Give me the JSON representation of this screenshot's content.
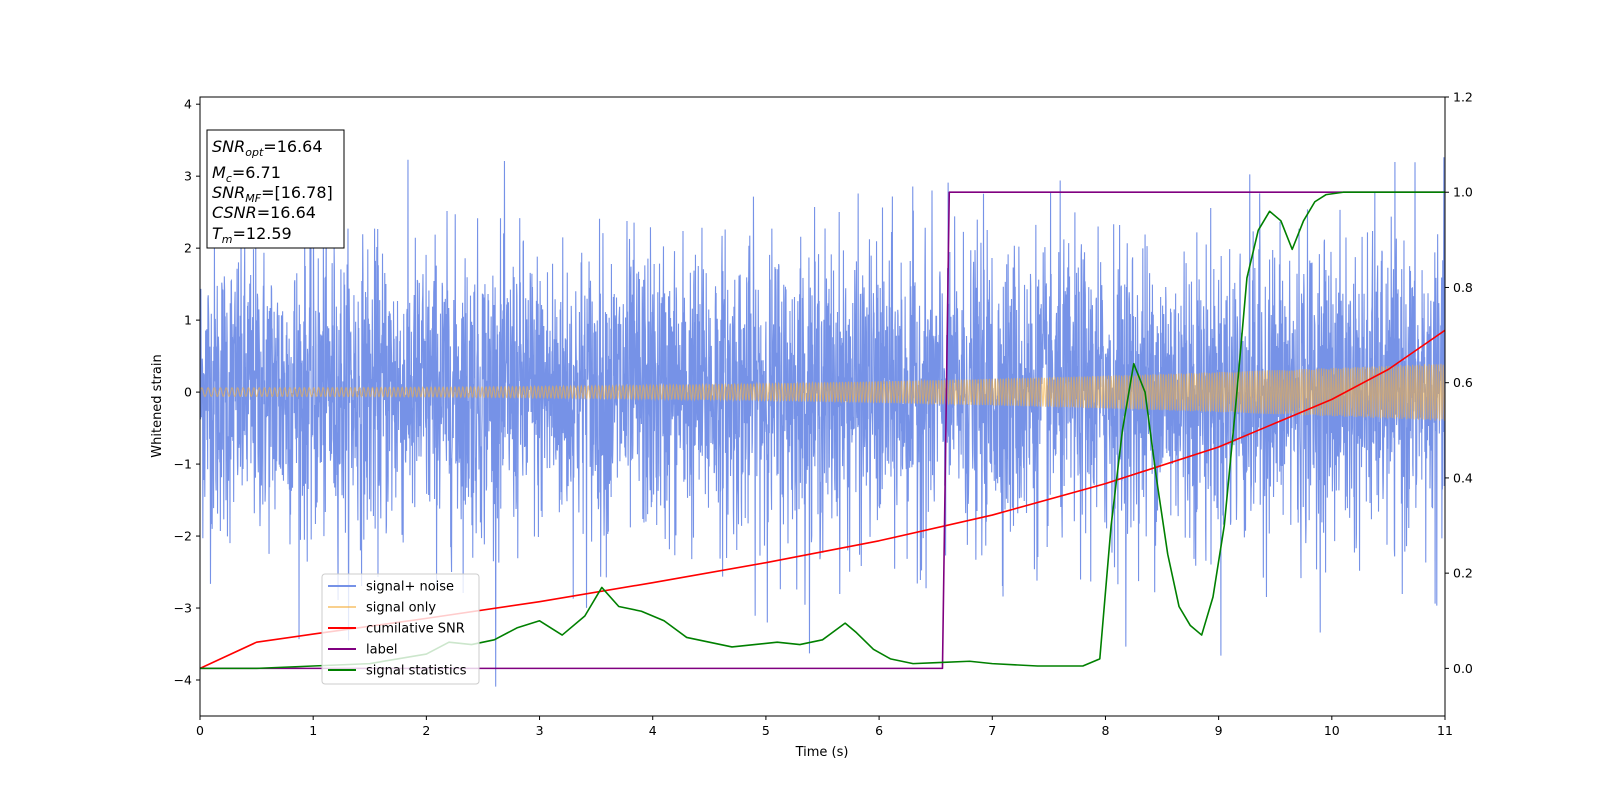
{
  "chart_data": {
    "type": "line",
    "xlabel": "Time (s)",
    "ylabel": "Whitened strain",
    "xlim": [
      0,
      11
    ],
    "ylim": [
      -4.5,
      4.1
    ],
    "y2lim": [
      -0.1,
      1.2
    ],
    "x_ticks": [
      "0",
      "1",
      "2",
      "3",
      "4",
      "5",
      "6",
      "7",
      "8",
      "9",
      "10",
      "11"
    ],
    "y_ticks": [
      "4",
      "3",
      "2",
      "1",
      "0",
      "−1",
      "−2",
      "−3",
      "−4"
    ],
    "y2_ticks": [
      "1.2",
      "1.0",
      "0.8",
      "0.6",
      "0.4",
      "0.2",
      "0.0"
    ],
    "grid": false,
    "legend_position": "lower-left",
    "info_box": {
      "snr_opt": {
        "base": "SNR",
        "sub": "opt",
        "value": "=16.64"
      },
      "mc": {
        "base": "M",
        "sub": "c",
        "value": "=6.71"
      },
      "snr_mf": {
        "base": "SNR",
        "sub": "MF",
        "value": "=[16.78]"
      },
      "csnr": {
        "base": "CSNR",
        "value": "=16.64"
      },
      "tm": {
        "base": "T",
        "sub": "m",
        "value": "=12.59"
      }
    },
    "series": [
      {
        "name": "signal+ noise",
        "axis": "left",
        "color": "#6f8ce6",
        "style": "noise-band",
        "description_values": {
          "noise_sigma": 1.0,
          "peak_max": 3.65,
          "peak_min": -4.15
        }
      },
      {
        "name": "signal only",
        "axis": "left",
        "color": "#f5b041",
        "style": "chirp",
        "description_values": {
          "amplitude_start": 0.06,
          "amplitude_end": 0.4,
          "cycles": 400
        }
      },
      {
        "name": "cumilative SNR",
        "axis": "right",
        "color": "#ff0000",
        "x": [
          0,
          0.5,
          1,
          2,
          3,
          4,
          5,
          6,
          7,
          8,
          9,
          10,
          10.5,
          11
        ],
        "y": [
          0.0,
          0.055,
          0.072,
          0.105,
          0.14,
          0.18,
          0.222,
          0.268,
          0.322,
          0.388,
          0.465,
          0.565,
          0.628,
          0.71
        ]
      },
      {
        "name": "label",
        "axis": "right",
        "color": "#800080",
        "x": [
          0,
          6.56,
          6.62,
          11
        ],
        "y": [
          0.0,
          0.0,
          1.0,
          1.0
        ]
      },
      {
        "name": "signal statistics",
        "axis": "right",
        "color": "#008000",
        "x": [
          0,
          0.5,
          1,
          1.5,
          2,
          2.2,
          2.4,
          2.6,
          2.8,
          3.0,
          3.2,
          3.4,
          3.55,
          3.7,
          3.9,
          4.1,
          4.3,
          4.5,
          4.7,
          4.9,
          5.1,
          5.3,
          5.5,
          5.7,
          5.8,
          5.95,
          6.1,
          6.3,
          6.5,
          6.8,
          7.0,
          7.4,
          7.8,
          7.95,
          8.05,
          8.15,
          8.25,
          8.35,
          8.45,
          8.55,
          8.65,
          8.75,
          8.85,
          8.95,
          9.05,
          9.15,
          9.25,
          9.35,
          9.45,
          9.55,
          9.65,
          9.75,
          9.85,
          9.95,
          10.1,
          10.3,
          10.6,
          11
        ],
        "y": [
          0.0,
          0.0,
          0.005,
          0.01,
          0.03,
          0.055,
          0.05,
          0.06,
          0.085,
          0.1,
          0.07,
          0.11,
          0.17,
          0.13,
          0.12,
          0.1,
          0.065,
          0.055,
          0.045,
          0.05,
          0.055,
          0.05,
          0.06,
          0.095,
          0.075,
          0.04,
          0.02,
          0.01,
          0.012,
          0.015,
          0.01,
          0.005,
          0.005,
          0.02,
          0.3,
          0.5,
          0.64,
          0.58,
          0.4,
          0.24,
          0.13,
          0.09,
          0.07,
          0.15,
          0.3,
          0.55,
          0.82,
          0.92,
          0.96,
          0.94,
          0.88,
          0.94,
          0.98,
          0.995,
          1.0,
          1.0,
          1.0,
          1.0
        ]
      }
    ]
  }
}
